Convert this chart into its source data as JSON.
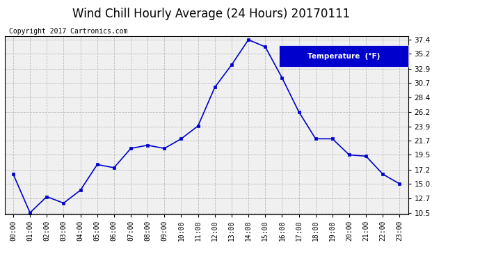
{
  "title": "Wind Chill Hourly Average (24 Hours) 20170111",
  "copyright": "Copyright 2017 Cartronics.com",
  "legend_label": "Temperature  (°F)",
  "hours": [
    "00:00",
    "01:00",
    "02:00",
    "03:00",
    "04:00",
    "05:00",
    "06:00",
    "07:00",
    "08:00",
    "09:00",
    "10:00",
    "11:00",
    "12:00",
    "13:00",
    "14:00",
    "15:00",
    "16:00",
    "17:00",
    "18:00",
    "19:00",
    "20:00",
    "21:00",
    "22:00",
    "23:00"
  ],
  "values": [
    16.5,
    10.5,
    13.0,
    12.0,
    14.0,
    18.0,
    17.5,
    20.5,
    21.0,
    20.5,
    22.0,
    24.0,
    30.0,
    33.5,
    37.4,
    36.3,
    31.5,
    26.2,
    22.0,
    22.0,
    19.5,
    19.3,
    16.5,
    15.0
  ],
  "yticks": [
    10.5,
    12.7,
    15.0,
    17.2,
    19.5,
    21.7,
    23.9,
    26.2,
    28.4,
    30.7,
    32.9,
    35.2,
    37.4
  ],
  "ylim_min": 10.5,
  "ylim_max": 37.4,
  "line_color": "#0000cc",
  "marker_color": "#0000cc",
  "bg_color": "#ffffff",
  "plot_bg_color": "#f0f0f0",
  "grid_color": "#bbbbbb",
  "title_fontsize": 12,
  "copyright_fontsize": 7,
  "legend_bg_color": "#0000cc",
  "legend_text_color": "#ffffff",
  "tick_fontsize": 7,
  "ytick_fontsize": 7.5
}
